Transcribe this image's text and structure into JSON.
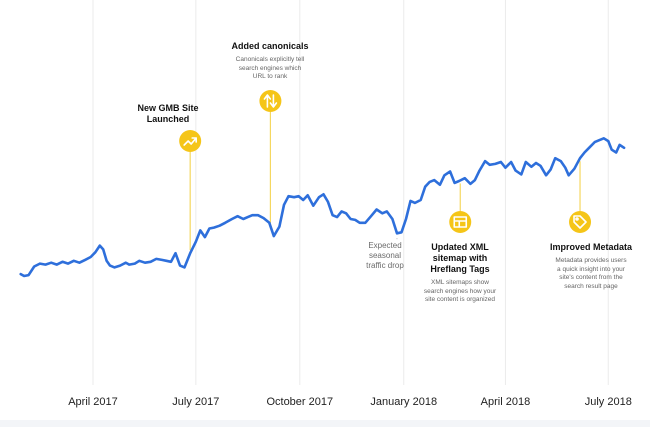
{
  "chart_data": {
    "type": "line",
    "title": "",
    "xlabel": "",
    "ylabel": "",
    "x_ticks": [
      "April 2017",
      "July 2017",
      "October 2017",
      "January 2018",
      "April 2018",
      "July 2018"
    ],
    "x_range": [
      "2017-01-27",
      "2018-07-15"
    ],
    "y_axis_shown": false,
    "grid": "vertical lines at x ticks",
    "line_color": "#2e6fdb",
    "accent_color": "#f5c518",
    "series": [
      {
        "name": "",
        "points": [
          [
            "2017-01-27",
            22
          ],
          [
            "2017-01-30",
            20
          ],
          [
            "2017-02-03",
            21
          ],
          [
            "2017-02-08",
            30
          ],
          [
            "2017-02-13",
            33
          ],
          [
            "2017-02-18",
            32
          ],
          [
            "2017-02-23",
            34
          ],
          [
            "2017-02-28",
            32
          ],
          [
            "2017-03-05",
            35
          ],
          [
            "2017-03-10",
            33
          ],
          [
            "2017-03-15",
            36
          ],
          [
            "2017-03-20",
            34
          ],
          [
            "2017-03-25",
            37
          ],
          [
            "2017-03-30",
            40
          ],
          [
            "2017-04-03",
            45
          ],
          [
            "2017-04-07",
            52
          ],
          [
            "2017-04-10",
            48
          ],
          [
            "2017-04-13",
            36
          ],
          [
            "2017-04-16",
            31
          ],
          [
            "2017-04-20",
            29
          ],
          [
            "2017-04-25",
            31
          ],
          [
            "2017-04-30",
            34
          ],
          [
            "2017-05-03",
            32
          ],
          [
            "2017-05-08",
            33
          ],
          [
            "2017-05-12",
            36
          ],
          [
            "2017-05-17",
            34
          ],
          [
            "2017-05-22",
            35
          ],
          [
            "2017-05-27",
            38
          ],
          [
            "2017-06-01",
            37
          ],
          [
            "2017-06-05",
            36
          ],
          [
            "2017-06-09",
            35
          ],
          [
            "2017-06-13",
            44
          ],
          [
            "2017-06-17",
            31
          ],
          [
            "2017-06-21",
            29
          ],
          [
            "2017-06-26",
            44
          ],
          [
            "2017-07-01",
            56
          ],
          [
            "2017-07-05",
            68
          ],
          [
            "2017-07-09",
            61
          ],
          [
            "2017-07-13",
            70
          ],
          [
            "2017-07-17",
            71
          ],
          [
            "2017-07-22",
            73
          ],
          [
            "2017-07-27",
            76
          ],
          [
            "2017-08-02",
            80
          ],
          [
            "2017-08-07",
            83
          ],
          [
            "2017-08-12",
            80
          ],
          [
            "2017-08-16",
            82
          ],
          [
            "2017-08-20",
            84
          ],
          [
            "2017-08-25",
            84
          ],
          [
            "2017-08-30",
            81
          ],
          [
            "2017-09-04",
            76
          ],
          [
            "2017-09-08",
            62
          ],
          [
            "2017-09-13",
            72
          ],
          [
            "2017-09-17",
            95
          ],
          [
            "2017-09-21",
            104
          ],
          [
            "2017-09-26",
            103
          ],
          [
            "2017-09-30",
            104
          ],
          [
            "2017-10-04",
            100
          ],
          [
            "2017-10-08",
            105
          ],
          [
            "2017-10-13",
            94
          ],
          [
            "2017-10-18",
            103
          ],
          [
            "2017-10-22",
            106
          ],
          [
            "2017-10-26",
            98
          ],
          [
            "2017-10-30",
            84
          ],
          [
            "2017-11-03",
            82
          ],
          [
            "2017-11-07",
            88
          ],
          [
            "2017-11-11",
            86
          ],
          [
            "2017-11-15",
            80
          ],
          [
            "2017-11-19",
            79
          ],
          [
            "2017-11-23",
            76
          ],
          [
            "2017-11-28",
            76
          ],
          [
            "2017-12-03",
            83
          ],
          [
            "2017-12-08",
            90
          ],
          [
            "2017-12-13",
            86
          ],
          [
            "2017-12-17",
            88
          ],
          [
            "2017-12-22",
            80
          ],
          [
            "2017-12-26",
            65
          ],
          [
            "2017-12-30",
            66
          ],
          [
            "2018-01-03",
            80
          ],
          [
            "2018-01-07",
            99
          ],
          [
            "2018-01-11",
            97
          ],
          [
            "2018-01-16",
            100
          ],
          [
            "2018-01-20",
            114
          ],
          [
            "2018-01-24",
            119
          ],
          [
            "2018-01-28",
            121
          ],
          [
            "2018-02-02",
            116
          ],
          [
            "2018-02-06",
            126
          ],
          [
            "2018-02-11",
            130
          ],
          [
            "2018-02-15",
            118
          ],
          [
            "2018-02-19",
            120
          ],
          [
            "2018-02-24",
            123
          ],
          [
            "2018-03-01",
            117
          ],
          [
            "2018-03-05",
            121
          ],
          [
            "2018-03-09",
            131
          ],
          [
            "2018-03-14",
            141
          ],
          [
            "2018-03-18",
            137
          ],
          [
            "2018-03-23",
            138
          ],
          [
            "2018-03-28",
            140
          ],
          [
            "2018-04-01",
            134
          ],
          [
            "2018-04-06",
            140
          ],
          [
            "2018-04-10",
            131
          ],
          [
            "2018-04-15",
            127
          ],
          [
            "2018-04-19",
            140
          ],
          [
            "2018-04-24",
            135
          ],
          [
            "2018-04-28",
            139
          ],
          [
            "2018-05-02",
            136
          ],
          [
            "2018-05-07",
            126
          ],
          [
            "2018-05-11",
            132
          ],
          [
            "2018-05-15",
            144
          ],
          [
            "2018-05-20",
            141
          ],
          [
            "2018-05-24",
            134
          ],
          [
            "2018-05-27",
            126
          ],
          [
            "2018-06-01",
            133
          ],
          [
            "2018-06-06",
            144
          ],
          [
            "2018-06-10",
            150
          ],
          [
            "2018-06-14",
            155
          ],
          [
            "2018-06-19",
            161
          ],
          [
            "2018-06-23",
            163
          ],
          [
            "2018-06-27",
            165
          ],
          [
            "2018-07-01",
            162
          ],
          [
            "2018-07-04",
            153
          ],
          [
            "2018-07-08",
            150
          ],
          [
            "2018-07-11",
            158
          ],
          [
            "2018-07-15",
            155
          ]
        ]
      }
    ],
    "annotations": [
      {
        "id": "gmb",
        "date": "2017-06-26",
        "icon": "trending-up-icon",
        "title_lines": [
          "New GMB Site",
          "Launched"
        ],
        "desc_lines": []
      },
      {
        "id": "canonicals",
        "date": "2017-09-05",
        "icon": "swap-vertical-icon",
        "title_lines": [
          "Added canonicals"
        ],
        "desc_lines": [
          "Canonicals explicitly tell",
          "search engines which",
          "URL to rank"
        ]
      },
      {
        "id": "seasonal",
        "date": "2017-12-26",
        "icon": "",
        "muted_lines": [
          "Expected",
          "seasonal",
          "traffic drop"
        ]
      },
      {
        "id": "sitemap",
        "date": "2018-02-20",
        "icon": "sitemap-icon",
        "title_lines": [
          "Updated XML",
          "sitemap with",
          "Hreflang Tags"
        ],
        "desc_lines": [
          "XML sitemaps show",
          "search engines how your",
          "site content is organized"
        ]
      },
      {
        "id": "metadata",
        "date": "2018-06-06",
        "icon": "tag-icon",
        "title_lines": [
          "Improved Metadata"
        ],
        "desc_lines": [
          "Metadata provides users",
          "a quick insight into your",
          "site's content from the",
          "search result page"
        ]
      }
    ]
  }
}
